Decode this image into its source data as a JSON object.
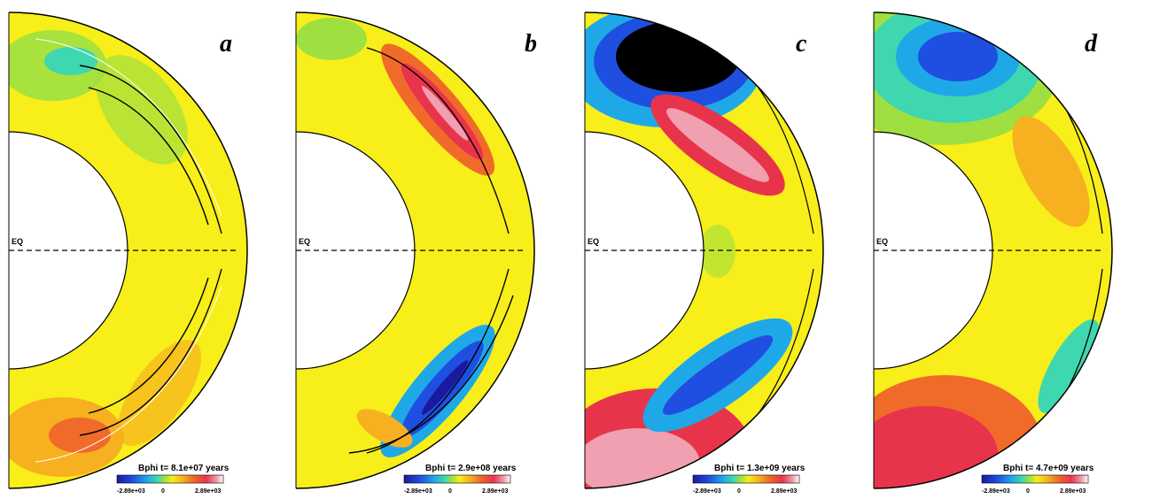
{
  "figure": {
    "panels": [
      {
        "letter": "a",
        "time_label": "Bphi t= 8.1e+07 years",
        "eq_label": "EQ",
        "colorbar": {
          "min": "-2.89e+03",
          "mid": "0",
          "max": "2.89e+03"
        },
        "pattern": "weak-north-negative-south-positive"
      },
      {
        "letter": "b",
        "time_label": "Bphi t= 2.9e+08 years",
        "eq_label": "EQ",
        "colorbar": {
          "min": "-2.89e+03",
          "mid": "0",
          "max": "2.89e+03"
        },
        "pattern": "north-positive-south-negative"
      },
      {
        "letter": "c",
        "time_label": "Bphi t= 1.3e+09 years",
        "eq_label": "EQ",
        "colorbar": {
          "min": "-2.89e+03",
          "mid": "0",
          "max": "2.89e+03"
        },
        "pattern": "strong-north-negative-south-positive"
      },
      {
        "letter": "d",
        "time_label": "Bphi t= 4.7e+09 years",
        "eq_label": "EQ",
        "colorbar": {
          "min": "-2.89e+03",
          "mid": "0",
          "max": "2.89e+03"
        },
        "pattern": "north-negative-south-positive-diffuse"
      }
    ],
    "colors": {
      "background_field": "#f7ee1a",
      "colormap": [
        "#1a1aa0",
        "#1f4fe0",
        "#1fa8e8",
        "#3fd7b0",
        "#9fe040",
        "#f7ee1a",
        "#f7b020",
        "#f06a2a",
        "#e8344a",
        "#f0a0b0",
        "#ffffff"
      ]
    }
  }
}
